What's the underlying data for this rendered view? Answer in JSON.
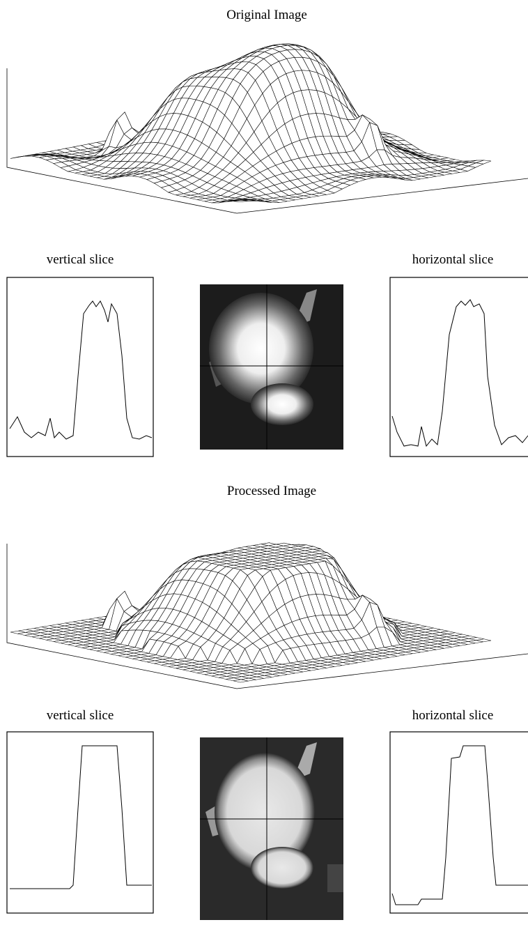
{
  "original": {
    "title": "Original Image",
    "vertical_slice_label": "vertical slice",
    "horizontal_slice_label": "horizontal slice"
  },
  "processed": {
    "title": "Processed Image",
    "vertical_slice_label": "vertical slice",
    "horizontal_slice_label": "horizontal slice"
  }
}
